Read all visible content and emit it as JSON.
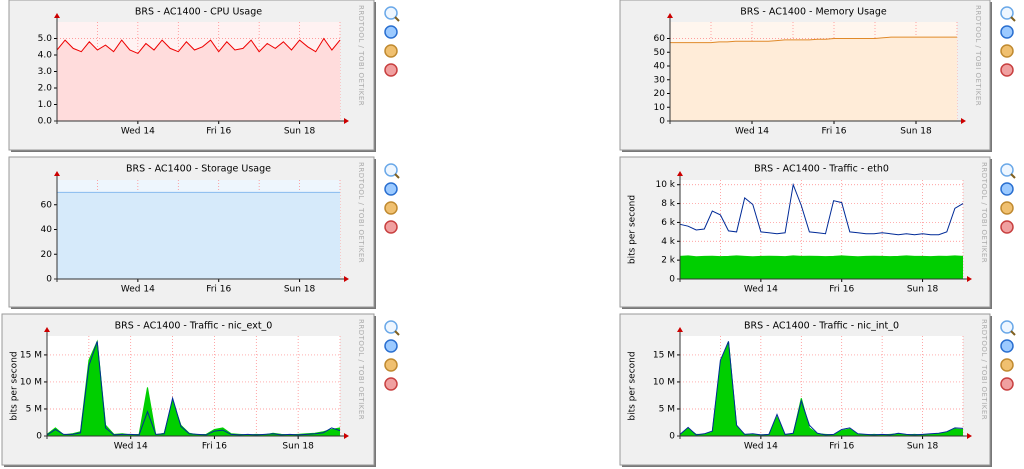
{
  "chart_data": [
    {
      "type": "area",
      "title": "BRS - AC1400 - CPU Usage",
      "watermark": "RRDTOOL / TOBI OETIKER",
      "categories": [
        null,
        null,
        null,
        null,
        null,
        null,
        null,
        null,
        null,
        null,
        "Wed 14",
        null,
        null,
        null,
        null,
        null,
        null,
        null,
        null,
        null,
        "Fri 16",
        null,
        null,
        null,
        null,
        null,
        null,
        null,
        null,
        null,
        "Sun 18",
        null,
        null,
        null,
        null,
        null
      ],
      "series": [
        {
          "color": "#ee0000",
          "fill": "#ffdcdc",
          "values": [
            4.3,
            4.9,
            4.4,
            4.2,
            4.8,
            4.3,
            4.6,
            4.2,
            4.9,
            4.3,
            4.1,
            4.7,
            4.3,
            4.9,
            4.4,
            4.2,
            4.8,
            4.3,
            4.5,
            4.9,
            4.2,
            4.8,
            4.3,
            4.4,
            4.9,
            4.2,
            4.7,
            4.4,
            4.8,
            4.3,
            4.9,
            4.5,
            4.2,
            5.0,
            4.3,
            4.9
          ]
        }
      ],
      "ylim": [
        0,
        6
      ],
      "yticks": [
        {
          "value": 0,
          "label": "0.0"
        },
        {
          "value": 1,
          "label": "1.0"
        },
        {
          "value": 2,
          "label": "2.0"
        },
        {
          "value": 3,
          "label": "3.0"
        },
        {
          "value": 4,
          "label": "4.0"
        },
        {
          "value": 5,
          "label": "5.0"
        }
      ],
      "grid": true
    },
    {
      "type": "area",
      "title": "BRS - AC1400 - Memory Usage",
      "watermark": "RRDTOOL / TOBI OETIKER",
      "categories": [
        null,
        null,
        null,
        null,
        null,
        null,
        null,
        null,
        null,
        null,
        "Wed 14",
        null,
        null,
        null,
        null,
        null,
        null,
        null,
        null,
        null,
        "Fri 16",
        null,
        null,
        null,
        null,
        null,
        null,
        null,
        null,
        null,
        "Sun 18",
        null,
        null,
        null,
        null,
        null
      ],
      "series": [
        {
          "color": "#e08a2a",
          "fill": "#ffecd8",
          "values": [
            57,
            57,
            57,
            57,
            57,
            57,
            57.5,
            57.5,
            58,
            58,
            58,
            58,
            58,
            58.5,
            59,
            59,
            59,
            59,
            59.5,
            59.5,
            60,
            60,
            60,
            60,
            60,
            60,
            60.5,
            61,
            61,
            61,
            61,
            61,
            61,
            61,
            61,
            61
          ]
        }
      ],
      "ylim": [
        0,
        72
      ],
      "yticks": [
        0,
        10,
        20,
        30,
        40,
        50,
        60
      ],
      "grid": true
    },
    {
      "type": "area",
      "title": "BRS - AC1400 - Storage Usage",
      "watermark": "RRDTOOL / TOBI OETIKER",
      "categories": [
        null,
        null,
        null,
        null,
        null,
        null,
        null,
        null,
        null,
        null,
        "Wed 14",
        null,
        null,
        null,
        null,
        null,
        null,
        null,
        null,
        null,
        "Fri 16",
        null,
        null,
        null,
        null,
        null,
        null,
        null,
        null,
        null,
        "Sun 18",
        null,
        null,
        null,
        null,
        null
      ],
      "series": [
        {
          "color": "#88bbee",
          "fill": "#d6eafa",
          "values": [
            70,
            70,
            70,
            70,
            70,
            70,
            70,
            70,
            70,
            70,
            70,
            70,
            70,
            70,
            70,
            70,
            70,
            70,
            70,
            70,
            70,
            70,
            70,
            70,
            70,
            70,
            70,
            70,
            70,
            70,
            70,
            70,
            70,
            70,
            70,
            70
          ]
        }
      ],
      "ylim": [
        0,
        80
      ],
      "yticks": [
        0,
        20,
        40,
        60
      ],
      "grid": true
    },
    {
      "type": "area",
      "title": "BRS - AC1400 - Traffic - eth0",
      "watermark": "RRDTOOL / TOBI OETIKER",
      "ylabel": "bits per second",
      "categories": [
        null,
        null,
        null,
        null,
        null,
        null,
        null,
        null,
        null,
        null,
        "Wed 14",
        null,
        null,
        null,
        null,
        null,
        null,
        null,
        null,
        null,
        "Fri 16",
        null,
        null,
        null,
        null,
        null,
        null,
        null,
        null,
        null,
        "Sun 18",
        null,
        null,
        null,
        null,
        null
      ],
      "series": [
        {
          "color": "#00cf00",
          "fill": "#00cf00",
          "values": [
            2400,
            2450,
            2350,
            2400,
            2420,
            2380,
            2400,
            2450,
            2400,
            2350,
            2400,
            2420,
            2400,
            2380,
            2450,
            2400,
            2420,
            2400,
            2380,
            2400,
            2450,
            2400,
            2350,
            2400,
            2420,
            2400,
            2380,
            2400,
            2450,
            2400,
            2400,
            2380,
            2420,
            2400,
            2450,
            2400
          ]
        },
        {
          "color": "#002a97",
          "values": [
            5800,
            5600,
            5200,
            5300,
            7200,
            6800,
            5100,
            5000,
            8600,
            7900,
            5000,
            4900,
            4800,
            4900,
            10000,
            7800,
            5000,
            4900,
            4800,
            8300,
            8100,
            5000,
            4900,
            4800,
            4800,
            4900,
            4800,
            4700,
            4800,
            4700,
            4800,
            4700,
            4700,
            5000,
            7500,
            8000
          ]
        }
      ],
      "ylim": [
        0,
        10500
      ],
      "yticks": [
        0,
        {
          "value": 2000,
          "label": "2 k"
        },
        {
          "value": 4000,
          "label": "4 k"
        },
        {
          "value": 6000,
          "label": "6 k"
        },
        {
          "value": 8000,
          "label": "8 k"
        },
        {
          "value": 10000,
          "label": "10 k"
        }
      ],
      "grid": true
    },
    {
      "type": "area",
      "title": "BRS - AC1400 - Traffic - nic_ext_0",
      "watermark": "RRDTOOL / TOBI OETIKER",
      "ylabel": "bits per second",
      "categories": [
        null,
        null,
        null,
        null,
        null,
        null,
        null,
        null,
        null,
        null,
        "Wed 14",
        null,
        null,
        null,
        null,
        null,
        null,
        null,
        null,
        null,
        "Fri 16",
        null,
        null,
        null,
        null,
        null,
        null,
        null,
        null,
        null,
        "Sun 18",
        null,
        null,
        null,
        null,
        null
      ],
      "series": [
        {
          "color": "#00cf00",
          "fill": "#00cf00",
          "values": [
            300000,
            1500000,
            200000,
            400000,
            800000,
            14000000,
            17500000,
            2000000,
            300000,
            400000,
            200000,
            300000,
            9000000,
            200000,
            500000,
            6500000,
            2000000,
            500000,
            200000,
            300000,
            1200000,
            1500000,
            400000,
            300000,
            200000,
            300000,
            200000,
            500000,
            300000,
            200000,
            300000,
            400000,
            500000,
            800000,
            1200000,
            1500000
          ]
        },
        {
          "color": "#002a97",
          "values": [
            200000,
            1200000,
            300000,
            300000,
            600000,
            13000000,
            17500000,
            1500000,
            200000,
            300000,
            300000,
            200000,
            4500000,
            300000,
            400000,
            7000000,
            1800000,
            400000,
            300000,
            200000,
            900000,
            1100000,
            300000,
            200000,
            300000,
            200000,
            300000,
            400000,
            200000,
            300000,
            200000,
            300000,
            400000,
            600000,
            1500000,
            1000000
          ]
        }
      ],
      "ylim": [
        0,
        18500000
      ],
      "yticks": [
        0,
        {
          "value": 5000000,
          "label": "5 M"
        },
        {
          "value": 10000000,
          "label": "10 M"
        },
        {
          "value": 15000000,
          "label": "15 M"
        }
      ],
      "grid": true
    },
    {
      "type": "area",
      "title": "BRS - AC1400 - Traffic - nic_int_0",
      "watermark": "RRDTOOL / TOBI OETIKER",
      "ylabel": "bits per second",
      "categories": [
        null,
        null,
        null,
        null,
        null,
        null,
        null,
        null,
        null,
        null,
        "Wed 14",
        null,
        null,
        null,
        null,
        null,
        null,
        null,
        null,
        null,
        "Fri 16",
        null,
        null,
        null,
        null,
        null,
        null,
        null,
        null,
        null,
        "Sun 18",
        null,
        null,
        null,
        null,
        null
      ],
      "series": [
        {
          "color": "#00cf00",
          "fill": "#00cf00",
          "values": [
            200000,
            1400000,
            300000,
            300000,
            700000,
            13500000,
            17500000,
            1800000,
            300000,
            300000,
            200000,
            300000,
            3500000,
            200000,
            400000,
            7000000,
            1500000,
            400000,
            300000,
            200000,
            1000000,
            1300000,
            300000,
            200000,
            300000,
            200000,
            300000,
            400000,
            200000,
            300000,
            200000,
            300000,
            400000,
            700000,
            1300000,
            1200000
          ]
        },
        {
          "color": "#002a97",
          "values": [
            300000,
            1600000,
            200000,
            400000,
            900000,
            14000000,
            17500000,
            2000000,
            300000,
            400000,
            200000,
            300000,
            4000000,
            300000,
            500000,
            6500000,
            2000000,
            500000,
            200000,
            300000,
            1200000,
            1500000,
            400000,
            300000,
            200000,
            300000,
            200000,
            500000,
            300000,
            200000,
            300000,
            400000,
            500000,
            800000,
            1500000,
            1400000
          ]
        }
      ],
      "ylim": [
        0,
        18500000
      ],
      "yticks": [
        0,
        {
          "value": 5000000,
          "label": "5 M"
        },
        {
          "value": 10000000,
          "label": "10 M"
        },
        {
          "value": 15000000,
          "label": "15 M"
        }
      ],
      "grid": true
    }
  ]
}
